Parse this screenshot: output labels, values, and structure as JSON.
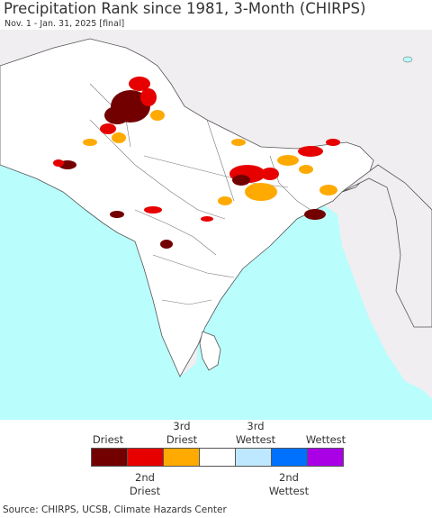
{
  "header": {
    "title": "Precipitation Rank since 1981, 3-Month (CHIRPS)",
    "subtitle": "Nov. 1 - Jan. 31, 2025 [final]"
  },
  "map": {
    "land_color": "#ffffff",
    "outside_land_color": "#f1eef1",
    "ocean_color": "#b9fdfc",
    "border_color": "#555555"
  },
  "legend": {
    "labels": {
      "driest": "Driest",
      "second_driest_line1": "2nd",
      "second_driest_line2": "Driest",
      "third_driest_line1": "3rd",
      "third_driest_line2": "Driest",
      "third_wettest_line1": "3rd",
      "third_wettest_line2": "Wettest",
      "second_wettest_line1": "2nd",
      "second_wettest_line2": "Wettest",
      "wettest": "Wettest"
    },
    "colors": [
      "#730000",
      "#e60000",
      "#ffaa00",
      "#ffffff",
      "#bee8ff",
      "#0070ff",
      "#a900e6"
    ]
  },
  "footer": {
    "source": "Source: CHIRPS, UCSB, Climate Hazards Center"
  }
}
